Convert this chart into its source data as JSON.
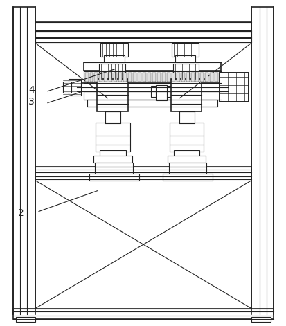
{
  "bg_color": "#ffffff",
  "lc": "#222222",
  "lw": 0.8,
  "lw2": 1.2,
  "fig_width": 4.14,
  "fig_height": 4.71,
  "dpi": 100,
  "label_fontsize": 10
}
